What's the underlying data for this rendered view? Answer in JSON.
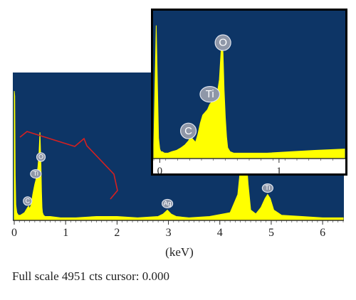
{
  "chart_data": [
    {
      "type": "line",
      "title": "",
      "xlabel": "(keV)",
      "ylabel": "",
      "xlim": [
        0,
        6.4
      ],
      "ylim": [
        0,
        1
      ],
      "x_ticks": [
        0,
        1,
        2,
        3,
        4,
        5,
        6
      ],
      "background": "#0d3566",
      "series_color": "#ffff00",
      "grid": false,
      "spectrum": {
        "x": [
          0.0,
          0.01,
          0.02,
          0.03,
          0.05,
          0.08,
          0.12,
          0.16,
          0.2,
          0.23,
          0.26,
          0.28,
          0.3,
          0.33,
          0.36,
          0.38,
          0.4,
          0.42,
          0.44,
          0.46,
          0.48,
          0.5,
          0.52,
          0.53,
          0.54,
          0.55,
          0.57,
          0.6,
          0.7,
          0.9,
          1.2,
          1.6,
          2.0,
          2.4,
          2.8,
          2.9,
          2.98,
          3.05,
          3.15,
          3.4,
          3.8,
          4.2,
          4.35,
          4.42,
          4.47,
          4.51,
          4.55,
          4.6,
          4.7,
          4.8,
          4.88,
          4.93,
          4.98,
          5.05,
          5.2,
          5.6,
          6.0,
          6.4
        ],
        "y": [
          1.0,
          0.96,
          0.35,
          0.12,
          0.06,
          0.04,
          0.04,
          0.05,
          0.06,
          0.08,
          0.1,
          0.11,
          0.09,
          0.12,
          0.2,
          0.24,
          0.28,
          0.31,
          0.36,
          0.41,
          0.5,
          0.68,
          0.44,
          0.22,
          0.1,
          0.06,
          0.04,
          0.03,
          0.03,
          0.02,
          0.02,
          0.03,
          0.03,
          0.02,
          0.03,
          0.05,
          0.08,
          0.05,
          0.03,
          0.02,
          0.03,
          0.06,
          0.2,
          0.48,
          0.56,
          0.5,
          0.28,
          0.08,
          0.05,
          0.1,
          0.17,
          0.2,
          0.17,
          0.08,
          0.04,
          0.03,
          0.02,
          0.02
        ]
      },
      "peaks": [
        {
          "label": "C",
          "x": 0.26
        },
        {
          "label": "Ti",
          "x": 0.42
        },
        {
          "label": "O",
          "x": 0.52
        },
        {
          "label": "Ag",
          "x": 2.98
        },
        {
          "label": "Ti",
          "x": 4.93
        }
      ],
      "annotation": {
        "type": "bracket",
        "color": "#d62020",
        "from_x": 0.2,
        "to_x": 2.0
      }
    },
    {
      "type": "line",
      "title": "",
      "xlabel": "",
      "ylabel": "",
      "xlim": [
        -0.05,
        1.55
      ],
      "ylim": [
        0,
        1
      ],
      "x_ticks": [
        0,
        1
      ],
      "background": "#0d3566",
      "series_color": "#ffff00",
      "grid": false,
      "spectrum": {
        "x": [
          -0.05,
          -0.03,
          -0.01,
          0.0,
          0.01,
          0.02,
          0.04,
          0.07,
          0.1,
          0.14,
          0.18,
          0.21,
          0.24,
          0.26,
          0.28,
          0.3,
          0.32,
          0.34,
          0.36,
          0.38,
          0.4,
          0.42,
          0.44,
          0.46,
          0.48,
          0.5,
          0.52,
          0.53,
          0.54,
          0.55,
          0.56,
          0.57,
          0.59,
          0.62,
          0.7,
          0.9,
          1.1,
          1.3,
          1.55
        ],
        "y": [
          0.1,
          0.98,
          0.15,
          0.07,
          0.05,
          0.05,
          0.04,
          0.04,
          0.05,
          0.06,
          0.08,
          0.1,
          0.13,
          0.16,
          0.14,
          0.12,
          0.18,
          0.26,
          0.32,
          0.34,
          0.36,
          0.4,
          0.42,
          0.43,
          0.47,
          0.58,
          0.88,
          0.78,
          0.5,
          0.3,
          0.16,
          0.08,
          0.05,
          0.04,
          0.04,
          0.04,
          0.05,
          0.06,
          0.07
        ]
      },
      "peaks": [
        {
          "label": "C",
          "x": 0.24
        },
        {
          "label": "Ti",
          "x": 0.42
        },
        {
          "label": "O",
          "x": 0.53
        }
      ]
    }
  ],
  "status": {
    "text": "Full scale 4951 cts cursor: 0.000"
  }
}
